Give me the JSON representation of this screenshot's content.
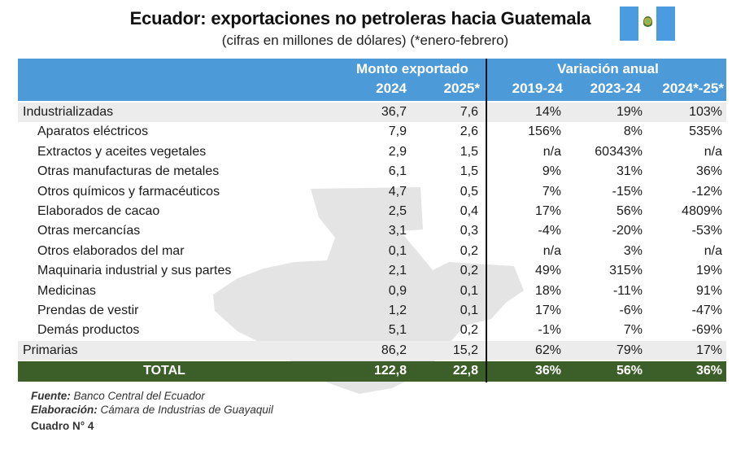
{
  "title": "Ecuador: exportaciones no petroleras hacia Guatemala",
  "subtitle": "(cifras en millones de dólares) (*enero-febrero)",
  "header": {
    "group_monto": "Monto exportado",
    "group_variacion": "Variación anual",
    "columns": [
      "2024",
      "2025*",
      "2019-24",
      "2023-24",
      "2024*-25*"
    ]
  },
  "rows": [
    {
      "label": "Industrializadas",
      "type": "group",
      "values": [
        "36,7",
        "7,6",
        "14%",
        "19%",
        "103%"
      ]
    },
    {
      "label": "Aparatos eléctricos",
      "type": "sub",
      "values": [
        "7,9",
        "2,6",
        "156%",
        "8%",
        "535%"
      ]
    },
    {
      "label": "Extractos y aceites vegetales",
      "type": "sub",
      "values": [
        "2,9",
        "1,5",
        "n/a",
        "60343%",
        "n/a"
      ]
    },
    {
      "label": "Otras manufacturas de metales",
      "type": "sub",
      "values": [
        "6,1",
        "1,5",
        "9%",
        "31%",
        "36%"
      ]
    },
    {
      "label": "Otros químicos y farmacéuticos",
      "type": "sub",
      "values": [
        "4,7",
        "0,5",
        "7%",
        "-15%",
        "-12%"
      ]
    },
    {
      "label": "Elaborados de cacao",
      "type": "sub",
      "values": [
        "2,5",
        "0,4",
        "17%",
        "56%",
        "4809%"
      ]
    },
    {
      "label": "Otras mercancías",
      "type": "sub",
      "values": [
        "3,1",
        "0,3",
        "-4%",
        "-20%",
        "-53%"
      ]
    },
    {
      "label": "Otros elaborados del mar",
      "type": "sub",
      "values": [
        "0,1",
        "0,2",
        "n/a",
        "3%",
        "n/a"
      ]
    },
    {
      "label": "Maquinaria industrial y sus partes",
      "type": "sub",
      "values": [
        "2,1",
        "0,2",
        "49%",
        "315%",
        "19%"
      ]
    },
    {
      "label": "Medicinas",
      "type": "sub",
      "values": [
        "0,9",
        "0,1",
        "18%",
        "-11%",
        "91%"
      ]
    },
    {
      "label": "Prendas de vestir",
      "type": "sub",
      "values": [
        "1,2",
        "0,1",
        "17%",
        "-6%",
        "-47%"
      ]
    },
    {
      "label": "Demás productos",
      "type": "sub",
      "values": [
        "5,1",
        "0,2",
        "-1%",
        "7%",
        "-69%"
      ]
    },
    {
      "label": "Primarias",
      "type": "group",
      "values": [
        "86,2",
        "15,2",
        "62%",
        "79%",
        "17%"
      ]
    }
  ],
  "total": {
    "label": "TOTAL",
    "values": [
      "122,8",
      "22,8",
      "36%",
      "56%",
      "36%"
    ]
  },
  "footer": {
    "fuente_label": "Fuente:",
    "fuente_value": "Banco Central del Ecuador",
    "elaboracion_label": "Elaboración:",
    "elaboracion_value": "Cámara de Industrias de Guayaquil",
    "caption": "Cuadro N° 4"
  },
  "colors": {
    "header_bg": "#4d9ad8",
    "total_bg": "#3c5f2a",
    "group_row_bg": "#ececec",
    "flag_blue": "#4a9be0",
    "map_gray": "#e4e4e4"
  },
  "icons": [
    "guatemala-flag-icon",
    "guatemala-map-silhouette"
  ]
}
